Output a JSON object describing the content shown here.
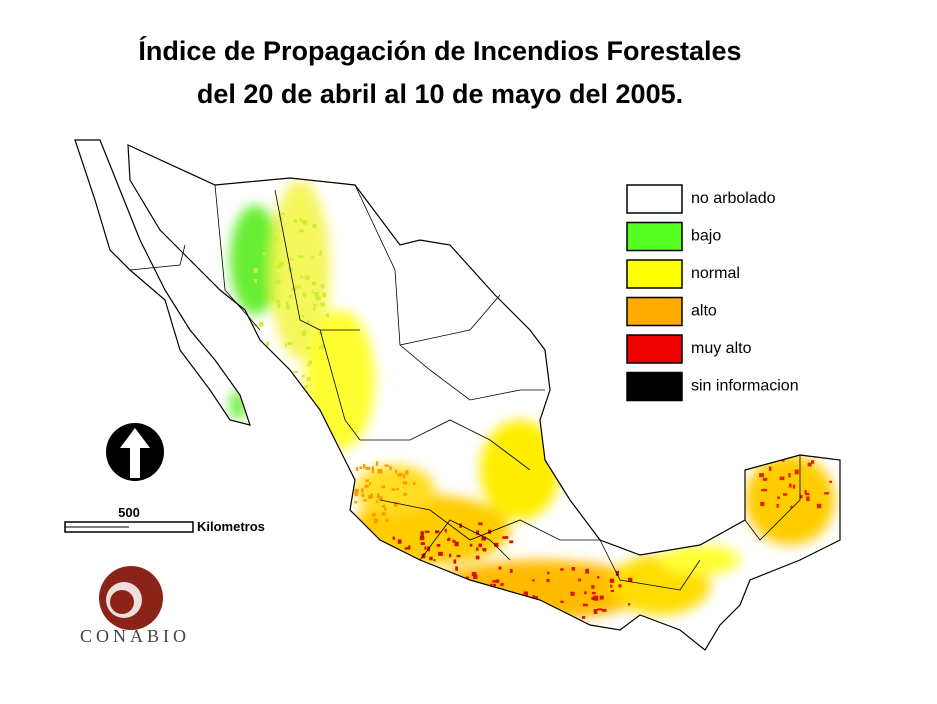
{
  "header": {
    "title": [
      "Índice de Propagación de Incendios Forestales",
      "del 20 de abril al 10 de mayo del 2005."
    ]
  },
  "legend": [
    {
      "label": "no arbolado",
      "color": "#ffffff"
    },
    {
      "label": "bajo",
      "color": "#55ff22"
    },
    {
      "label": "normal",
      "color": "#ffff00"
    },
    {
      "label": "alto",
      "color": "#ffaa00"
    },
    {
      "label": "muy alto",
      "color": "#ee0000"
    },
    {
      "label": "sin informacion",
      "color": "#000000"
    }
  ],
  "scale_bar": {
    "value": "500",
    "unit": "Kilometros"
  },
  "logo": {
    "text": "CONABIO"
  }
}
